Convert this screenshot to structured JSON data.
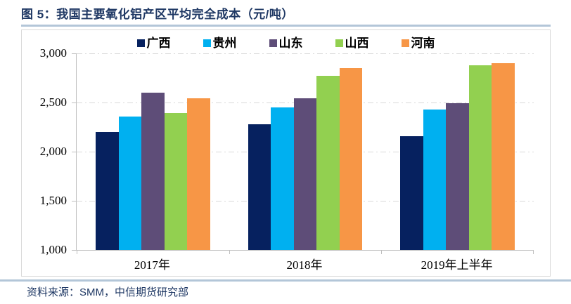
{
  "header": {
    "title": "图 5：我国主要氧化铝产区平均完全成本（元/吨）"
  },
  "footer": {
    "source": "资料来源：SMM，中信期货研究部"
  },
  "colors": {
    "title_text": "#1F3864",
    "separator_rule": "#B3C6D8",
    "chart_border": "#D9D9D9",
    "axis_line": "#BFBFBF",
    "gridline": "#D9D9D9"
  },
  "chart_data": {
    "type": "bar",
    "title": "我国主要氧化铝产区平均完全成本（元/吨）",
    "categories": [
      "2017年",
      "2018年",
      "2019年上半年"
    ],
    "series": [
      {
        "name": "广西",
        "color": "#06215F",
        "values": [
          2200,
          2280,
          2160
        ]
      },
      {
        "name": "贵州",
        "color": "#00B0F0",
        "values": [
          2360,
          2450,
          2430
        ]
      },
      {
        "name": "山东",
        "color": "#5E4D78",
        "values": [
          2600,
          2540,
          2490
        ]
      },
      {
        "name": "山西",
        "color": "#92D050",
        "values": [
          2390,
          2770,
          2880
        ]
      },
      {
        "name": "河南",
        "color": "#F79646",
        "values": [
          2540,
          2850,
          2900
        ]
      }
    ],
    "ylim": [
      1000,
      3000
    ],
    "ytick_labels_top_to_bottom": [
      "3,000",
      "2,500",
      "2,000",
      "1,500",
      "1,000"
    ],
    "ytick_interval": 500,
    "grid": "horizontal dash-dot",
    "legend_position": "top-center",
    "unit": "元/吨"
  }
}
